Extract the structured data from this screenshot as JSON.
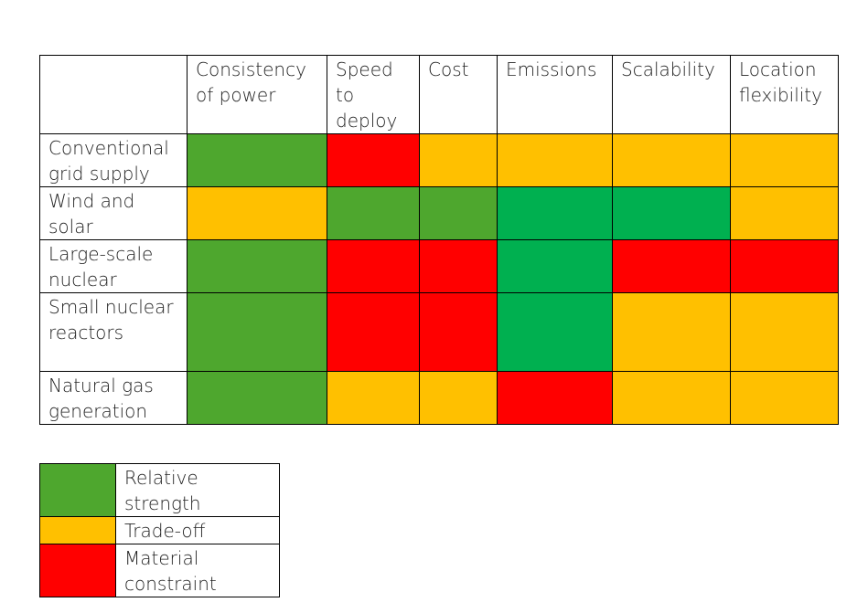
{
  "colors": {
    "strength": "#4ea72e",
    "strong_green": "#00b050",
    "tradeoff": "#ffc000",
    "constraint": "#ff0000"
  },
  "matrix": {
    "columns": [
      "Consistency of power",
      "Speed to deploy",
      "Cost",
      "Emissions",
      "Scalability",
      "Location flexibility"
    ],
    "rows": [
      {
        "label": "Conventional grid supply",
        "cells": [
          "strength",
          "constraint",
          "tradeoff",
          "tradeoff",
          "tradeoff",
          "tradeoff"
        ]
      },
      {
        "label": "Wind and solar",
        "cells": [
          "tradeoff",
          "strength",
          "strength",
          "strong_green",
          "strong_green",
          "tradeoff"
        ]
      },
      {
        "label": "Large-scale nuclear",
        "cells": [
          "strength",
          "constraint",
          "constraint",
          "strong_green",
          "constraint",
          "constraint"
        ]
      },
      {
        "label": "Small nuclear reactors",
        "cells": [
          "strength",
          "constraint",
          "constraint",
          "strong_green",
          "tradeoff",
          "tradeoff"
        ]
      },
      {
        "label": "Natural gas generation",
        "cells": [
          "strength",
          "tradeoff",
          "tradeoff",
          "constraint",
          "tradeoff",
          "tradeoff"
        ]
      }
    ]
  },
  "legend": [
    {
      "key": "strength",
      "label": "Relative strength"
    },
    {
      "key": "tradeoff",
      "label": "Trade-off"
    },
    {
      "key": "constraint",
      "label": "Material constraint"
    }
  ]
}
